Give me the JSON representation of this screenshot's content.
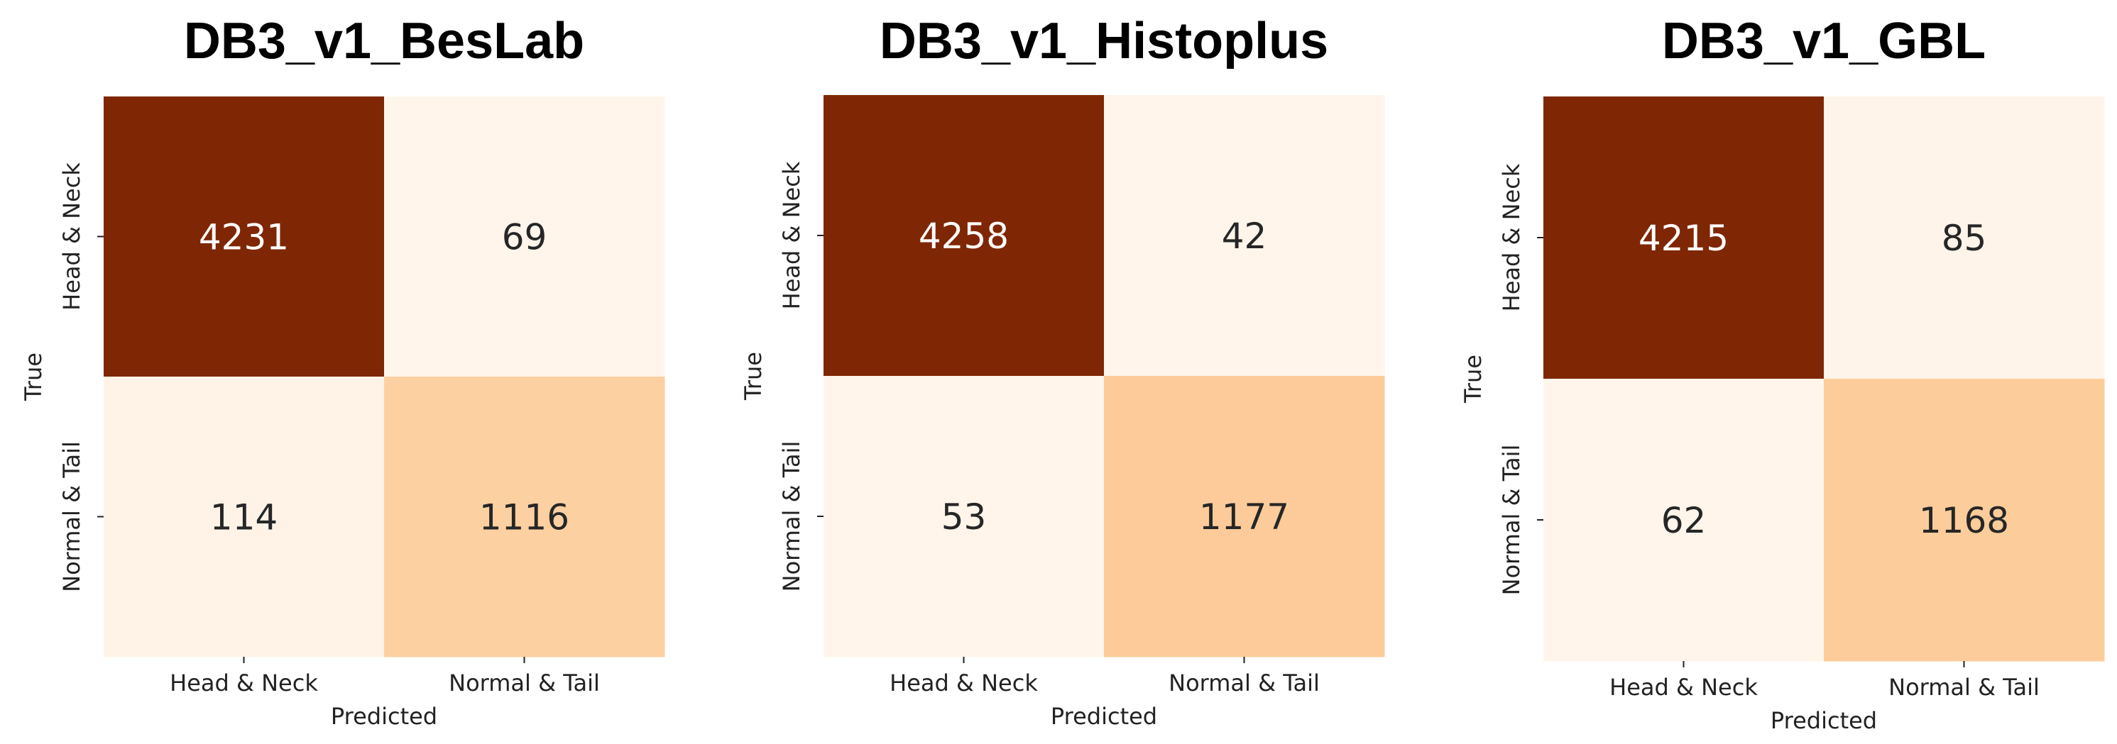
{
  "chart_data": [
    {
      "type": "heatmap",
      "title": "DB3_v1_BesLab",
      "xlabel": "Predicted",
      "ylabel": "True",
      "x_categories": [
        "Head & Neck",
        "Normal & Tail"
      ],
      "y_categories": [
        "Head & Neck",
        "Normal & Tail"
      ],
      "values": [
        [
          4231,
          69
        ],
        [
          114,
          1116
        ]
      ],
      "colormap": [
        "#fff5eb",
        "#fdd0a2",
        "#fd8d3c",
        "#d94801",
        "#7f2704"
      ],
      "colorbar": false,
      "grid": false
    },
    {
      "type": "heatmap",
      "title": "DB3_v1_Histoplus",
      "xlabel": "Predicted",
      "ylabel": "True",
      "x_categories": [
        "Head & Neck",
        "Normal & Tail"
      ],
      "y_categories": [
        "Head & Neck",
        "Normal & Tail"
      ],
      "values": [
        [
          4258,
          42
        ],
        [
          53,
          1177
        ]
      ],
      "colormap": [
        "#fff5eb",
        "#fdd0a2",
        "#fd8d3c",
        "#d94801",
        "#7f2704"
      ],
      "colorbar": false,
      "grid": false
    },
    {
      "type": "heatmap",
      "title": "DB3_v1_GBL",
      "xlabel": "Predicted",
      "ylabel": "True",
      "x_categories": [
        "Head & Neck",
        "Normal & Tail"
      ],
      "y_categories": [
        "Head & Neck",
        "Normal & Tail"
      ],
      "values": [
        [
          4215,
          85
        ],
        [
          62,
          1168
        ]
      ],
      "colormap": [
        "#fff5eb",
        "#fdd0a2",
        "#fd8d3c",
        "#d94801",
        "#7f2704"
      ],
      "colorbar": false,
      "grid": false
    }
  ]
}
